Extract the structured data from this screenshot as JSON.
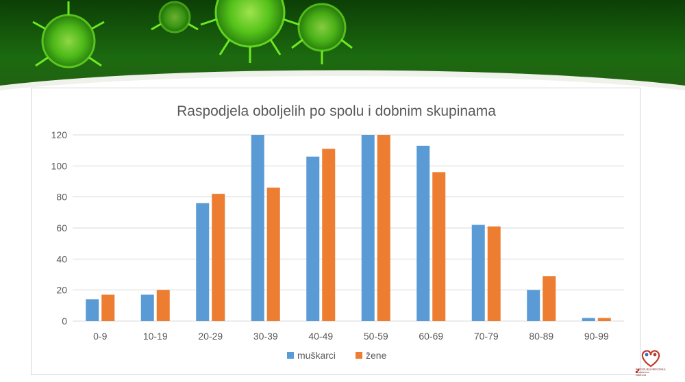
{
  "banner": {
    "colors": {
      "top": "#0c3f06",
      "mid": "#1c6a10",
      "virus": "#7dff2a"
    }
  },
  "logo": {
    "icon": "ministry-heart-logo-icon",
    "text_lines": [
      "REPUBLIKA HRVATSKA",
      "Ministarstvo",
      "zdravstva"
    ]
  },
  "chart_data": {
    "type": "bar",
    "title": "Raspodjela oboljelih po spolu i dobnim skupinama",
    "categories": [
      "0-9",
      "10-19",
      "20-29",
      "30-39",
      "40-49",
      "50-59",
      "60-69",
      "70-79",
      "80-89",
      "90-99"
    ],
    "series": [
      {
        "name": "muškarci",
        "color": "#5b9bd5",
        "values": [
          14,
          17,
          76,
          120,
          106,
          120,
          113,
          62,
          20,
          2
        ]
      },
      {
        "name": "žene",
        "color": "#ed7d31",
        "values": [
          17,
          20,
          82,
          86,
          111,
          120,
          96,
          61,
          29,
          2
        ]
      }
    ],
    "y_ticks": [
      "0",
      "20",
      "40",
      "60",
      "80",
      "100",
      "120"
    ],
    "ylim": [
      0,
      120
    ],
    "grid": true,
    "legend_position": "bottom"
  }
}
